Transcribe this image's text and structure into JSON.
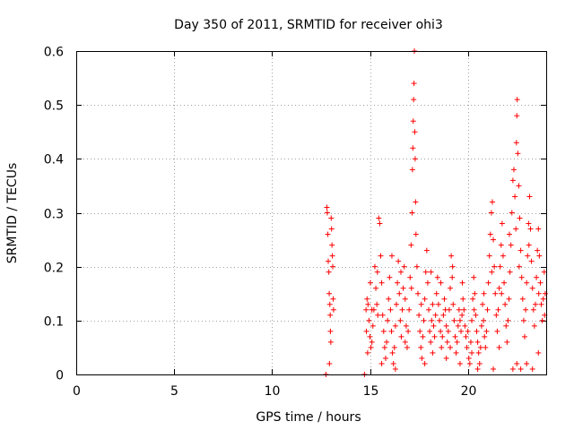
{
  "chart_data": {
    "type": "scatter",
    "title": "Day 350 of 2011, SRMTID for receiver ohi3",
    "xlabel": "GPS time / hours",
    "ylabel": "SRMTID / TECUs",
    "xlim": [
      0,
      24
    ],
    "ylim": [
      0,
      0.6
    ],
    "xticks": [
      0,
      5,
      10,
      15,
      20
    ],
    "yticks": [
      0,
      0.1,
      0.2,
      0.3,
      0.4,
      0.5,
      0.6
    ],
    "ytick_labels": [
      "0",
      "0.1",
      "0.2",
      "0.3",
      "0.4",
      "0.5",
      "0.6"
    ],
    "grid": true,
    "marker": "+",
    "color": "#ff0000",
    "series": [
      {
        "name": "SRMTID",
        "points": [
          [
            12.75,
            0.0
          ],
          [
            14.72,
            0.0
          ],
          [
            12.8,
            0.31
          ],
          [
            12.82,
            0.3
          ],
          [
            12.85,
            0.26
          ],
          [
            12.87,
            0.21
          ],
          [
            12.9,
            0.19
          ],
          [
            12.92,
            0.15
          ],
          [
            12.95,
            0.13
          ],
          [
            12.97,
            0.11
          ],
          [
            12.98,
            0.08
          ],
          [
            13.0,
            0.06
          ],
          [
            12.93,
            0.02
          ],
          [
            13.02,
            0.29
          ],
          [
            13.04,
            0.27
          ],
          [
            13.06,
            0.24
          ],
          [
            13.08,
            0.22
          ],
          [
            13.1,
            0.2
          ],
          [
            13.12,
            0.14
          ],
          [
            13.14,
            0.12
          ],
          [
            14.8,
            0.12
          ],
          [
            14.85,
            0.14
          ],
          [
            14.9,
            0.13
          ],
          [
            14.95,
            0.1
          ],
          [
            15.0,
            0.07
          ],
          [
            15.05,
            0.05
          ],
          [
            15.1,
            0.06
          ],
          [
            15.15,
            0.09
          ],
          [
            15.2,
            0.12
          ],
          [
            15.25,
            0.2
          ],
          [
            15.3,
            0.16
          ],
          [
            15.35,
            0.13
          ],
          [
            15.4,
            0.11
          ],
          [
            15.45,
            0.29
          ],
          [
            15.5,
            0.28
          ],
          [
            15.55,
            0.22
          ],
          [
            15.6,
            0.17
          ],
          [
            15.65,
            0.11
          ],
          [
            15.7,
            0.08
          ],
          [
            15.75,
            0.05
          ],
          [
            15.8,
            0.03
          ],
          [
            15.85,
            0.06
          ],
          [
            15.9,
            0.1
          ],
          [
            15.95,
            0.14
          ],
          [
            16.0,
            0.18
          ],
          [
            16.05,
            0.12
          ],
          [
            16.1,
            0.08
          ],
          [
            16.15,
            0.04
          ],
          [
            16.2,
            0.02
          ],
          [
            16.25,
            0.05
          ],
          [
            16.3,
            0.09
          ],
          [
            16.35,
            0.13
          ],
          [
            16.4,
            0.17
          ],
          [
            16.45,
            0.21
          ],
          [
            16.5,
            0.15
          ],
          [
            16.55,
            0.1
          ],
          [
            16.6,
            0.07
          ],
          [
            16.65,
            0.12
          ],
          [
            16.7,
            0.16
          ],
          [
            16.75,
            0.2
          ],
          [
            16.8,
            0.14
          ],
          [
            16.85,
            0.09
          ],
          [
            16.9,
            0.05
          ],
          [
            16.95,
            0.08
          ],
          [
            17.0,
            0.12
          ],
          [
            17.05,
            0.18
          ],
          [
            17.1,
            0.24
          ],
          [
            17.15,
            0.3
          ],
          [
            17.17,
            0.38
          ],
          [
            17.19,
            0.42
          ],
          [
            17.21,
            0.47
          ],
          [
            17.23,
            0.51
          ],
          [
            17.25,
            0.54
          ],
          [
            17.27,
            0.6
          ],
          [
            17.29,
            0.45
          ],
          [
            17.31,
            0.4
          ],
          [
            17.33,
            0.32
          ],
          [
            17.35,
            0.26
          ],
          [
            17.4,
            0.2
          ],
          [
            17.45,
            0.15
          ],
          [
            17.5,
            0.11
          ],
          [
            17.55,
            0.08
          ],
          [
            17.6,
            0.05
          ],
          [
            17.65,
            0.03
          ],
          [
            17.7,
            0.07
          ],
          [
            17.75,
            0.1
          ],
          [
            17.8,
            0.14
          ],
          [
            17.85,
            0.19
          ],
          [
            17.9,
            0.23
          ],
          [
            17.95,
            0.17
          ],
          [
            18.0,
            0.12
          ],
          [
            18.05,
            0.08
          ],
          [
            18.1,
            0.06
          ],
          [
            18.15,
            0.1
          ],
          [
            18.2,
            0.13
          ],
          [
            18.25,
            0.09
          ],
          [
            18.3,
            0.07
          ],
          [
            18.35,
            0.11
          ],
          [
            18.4,
            0.15
          ],
          [
            18.45,
            0.18
          ],
          [
            18.5,
            0.13
          ],
          [
            18.55,
            0.1
          ],
          [
            18.6,
            0.08
          ],
          [
            18.65,
            0.05
          ],
          [
            18.7,
            0.07
          ],
          [
            18.75,
            0.11
          ],
          [
            18.8,
            0.14
          ],
          [
            18.85,
            0.12
          ],
          [
            18.9,
            0.09
          ],
          [
            18.95,
            0.06
          ],
          [
            19.0,
            0.08
          ],
          [
            19.05,
            0.12
          ],
          [
            19.1,
            0.16
          ],
          [
            19.15,
            0.22
          ],
          [
            19.2,
            0.18
          ],
          [
            19.25,
            0.13
          ],
          [
            19.3,
            0.1
          ],
          [
            19.35,
            0.07
          ],
          [
            19.4,
            0.04
          ],
          [
            19.45,
            0.06
          ],
          [
            19.5,
            0.09
          ],
          [
            19.55,
            0.12
          ],
          [
            19.6,
            0.1
          ],
          [
            19.65,
            0.08
          ],
          [
            19.7,
            0.11
          ],
          [
            19.75,
            0.14
          ],
          [
            19.8,
            0.12
          ],
          [
            19.85,
            0.09
          ],
          [
            19.9,
            0.07
          ],
          [
            19.95,
            0.05
          ],
          [
            20.0,
            0.08
          ],
          [
            20.05,
            0.03
          ],
          [
            20.1,
            0.02
          ],
          [
            20.15,
            0.06
          ],
          [
            20.2,
            0.1
          ],
          [
            20.25,
            0.14
          ],
          [
            20.3,
            0.18
          ],
          [
            20.35,
            0.15
          ],
          [
            20.4,
            0.11
          ],
          [
            20.45,
            0.08
          ],
          [
            20.5,
            0.06
          ],
          [
            20.55,
            0.04
          ],
          [
            20.6,
            0.02
          ],
          [
            20.65,
            0.05
          ],
          [
            20.7,
            0.09
          ],
          [
            20.75,
            0.13
          ],
          [
            20.8,
            0.1
          ],
          [
            20.85,
            0.07
          ],
          [
            20.9,
            0.05
          ],
          [
            20.95,
            0.08
          ],
          [
            21.0,
            0.12
          ],
          [
            21.05,
            0.17
          ],
          [
            21.1,
            0.22
          ],
          [
            21.15,
            0.26
          ],
          [
            21.2,
            0.3
          ],
          [
            21.25,
            0.32
          ],
          [
            21.3,
            0.25
          ],
          [
            21.35,
            0.2
          ],
          [
            21.4,
            0.15
          ],
          [
            21.45,
            0.11
          ],
          [
            21.5,
            0.08
          ],
          [
            21.55,
            0.12
          ],
          [
            21.6,
            0.16
          ],
          [
            21.65,
            0.2
          ],
          [
            21.7,
            0.24
          ],
          [
            21.75,
            0.28
          ],
          [
            21.8,
            0.22
          ],
          [
            21.85,
            0.17
          ],
          [
            21.9,
            0.13
          ],
          [
            21.95,
            0.09
          ],
          [
            22.0,
            0.06
          ],
          [
            22.05,
            0.1
          ],
          [
            22.1,
            0.14
          ],
          [
            22.15,
            0.19
          ],
          [
            22.2,
            0.24
          ],
          [
            22.25,
            0.3
          ],
          [
            22.3,
            0.36
          ],
          [
            22.35,
            0.38
          ],
          [
            22.4,
            0.33
          ],
          [
            22.45,
            0.27
          ],
          [
            22.48,
            0.43
          ],
          [
            22.5,
            0.48
          ],
          [
            22.52,
            0.51
          ],
          [
            22.55,
            0.41
          ],
          [
            22.6,
            0.35
          ],
          [
            22.65,
            0.29
          ],
          [
            22.7,
            0.23
          ],
          [
            22.75,
            0.18
          ],
          [
            22.8,
            0.14
          ],
          [
            22.85,
            0.1
          ],
          [
            22.9,
            0.07
          ],
          [
            22.95,
            0.12
          ],
          [
            23.0,
            0.17
          ],
          [
            23.05,
            0.22
          ],
          [
            23.1,
            0.28
          ],
          [
            23.15,
            0.33
          ],
          [
            23.2,
            0.27
          ],
          [
            23.25,
            0.21
          ],
          [
            23.3,
            0.16
          ],
          [
            23.35,
            0.12
          ],
          [
            23.4,
            0.09
          ],
          [
            23.45,
            0.13
          ],
          [
            23.5,
            0.18
          ],
          [
            23.55,
            0.23
          ],
          [
            23.6,
            0.27
          ],
          [
            23.65,
            0.22
          ],
          [
            23.7,
            0.17
          ],
          [
            23.75,
            0.13
          ],
          [
            23.8,
            0.1
          ],
          [
            23.85,
            0.14
          ],
          [
            23.9,
            0.19
          ],
          [
            23.95,
            0.15
          ],
          [
            22.3,
            0.01
          ],
          [
            22.5,
            0.02
          ],
          [
            22.7,
            0.01
          ],
          [
            23.0,
            0.02
          ],
          [
            23.3,
            0.01
          ],
          [
            21.3,
            0.01
          ],
          [
            20.5,
            0.01
          ],
          [
            19.6,
            0.02
          ],
          [
            18.9,
            0.03
          ],
          [
            17.8,
            0.02
          ],
          [
            16.3,
            0.01
          ],
          [
            15.6,
            0.02
          ],
          [
            15.1,
            0.12
          ],
          [
            16.8,
            0.06
          ],
          [
            18.2,
            0.04
          ],
          [
            19.1,
            0.05
          ],
          [
            20.2,
            0.04
          ],
          [
            21.6,
            0.05
          ],
          [
            23.6,
            0.04
          ],
          [
            14.82,
            0.08
          ],
          [
            14.88,
            0.04
          ],
          [
            15.02,
            0.17
          ],
          [
            15.38,
            0.19
          ],
          [
            16.12,
            0.22
          ],
          [
            16.58,
            0.19
          ],
          [
            17.12,
            0.16
          ],
          [
            17.62,
            0.13
          ],
          [
            18.12,
            0.19
          ],
          [
            18.62,
            0.17
          ],
          [
            19.22,
            0.2
          ],
          [
            19.72,
            0.17
          ],
          [
            20.32,
            0.12
          ],
          [
            20.82,
            0.15
          ],
          [
            21.22,
            0.19
          ],
          [
            21.72,
            0.15
          ],
          [
            22.12,
            0.26
          ],
          [
            22.62,
            0.2
          ],
          [
            23.12,
            0.24
          ],
          [
            23.62,
            0.15
          ],
          [
            23.92,
            0.11
          ]
        ]
      }
    ]
  }
}
